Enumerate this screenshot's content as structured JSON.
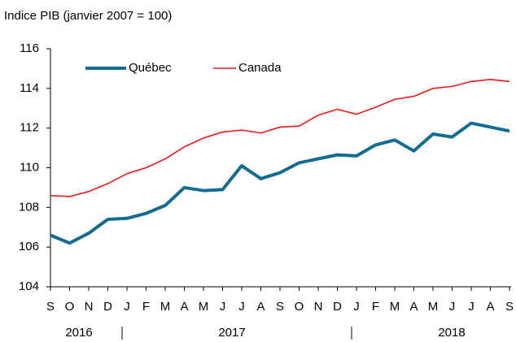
{
  "chart_data": {
    "type": "line",
    "title": "Indice PIB (janvier 2007 = 100)",
    "categories": [
      "S",
      "O",
      "N",
      "D",
      "J",
      "F",
      "M",
      "A",
      "M",
      "J",
      "J",
      "A",
      "S",
      "O",
      "N",
      "D",
      "J",
      "F",
      "M",
      "A",
      "M",
      "J",
      "J",
      "A",
      "S"
    ],
    "years": [
      "2016",
      "2017",
      "2018"
    ],
    "series": [
      {
        "name": "Québec",
        "color": "#146c90",
        "values": [
          106.6,
          106.2,
          106.7,
          107.4,
          107.45,
          107.7,
          108.1,
          109.0,
          108.85,
          108.9,
          110.1,
          109.45,
          109.75,
          110.25,
          110.45,
          110.65,
          110.6,
          111.15,
          111.4,
          110.85,
          111.7,
          111.55,
          112.25,
          112.05,
          111.85
        ]
      },
      {
        "name": "Canada",
        "color": "#e8191c",
        "values": [
          108.6,
          108.55,
          108.8,
          109.2,
          109.7,
          110.0,
          110.45,
          111.05,
          111.5,
          111.8,
          111.9,
          111.75,
          112.05,
          112.1,
          112.65,
          112.95,
          112.7,
          113.05,
          113.45,
          113.6,
          114.0,
          114.1,
          114.35,
          114.45,
          114.35
        ]
      }
    ],
    "ylim": [
      104,
      116
    ],
    "yticks": [
      104,
      106,
      108,
      110,
      112,
      114,
      116
    ],
    "grid": false,
    "legend": "top-left"
  }
}
